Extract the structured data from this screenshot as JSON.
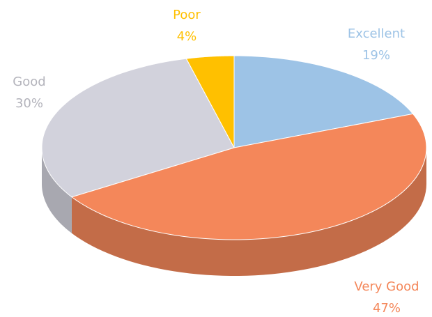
{
  "chart_data": {
    "type": "pie",
    "categories": [
      "Excellent",
      "Very Good",
      "Good",
      "Poor"
    ],
    "values": [
      19,
      47,
      30,
      4
    ],
    "value_labels": [
      "19%",
      "47%",
      "30%",
      "4%"
    ],
    "colors": [
      "#9dc3e6",
      "#f4875a",
      "#d2d2dc",
      "#ffc000"
    ]
  }
}
